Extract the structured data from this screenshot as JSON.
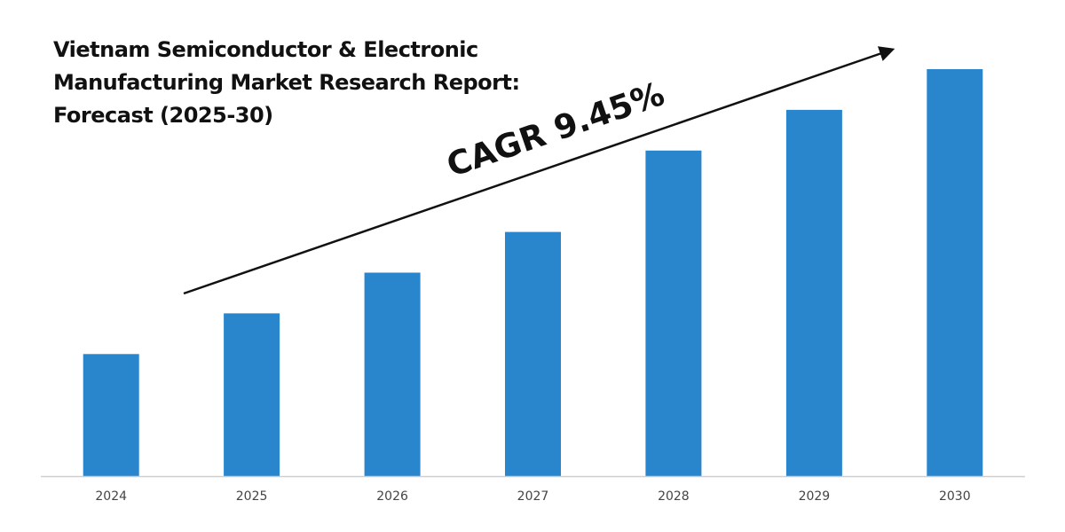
{
  "chart_data": {
    "type": "bar",
    "title_lines": [
      "Vietnam Semiconductor & Electronic",
      "Manufacturing Market Research Report:",
      "Forecast (2025-30)"
    ],
    "categories": [
      "2024",
      "2025",
      "2026",
      "2027",
      "2028",
      "2029",
      "2030"
    ],
    "values": [
      30,
      40,
      50,
      60,
      80,
      90,
      100
    ],
    "ylim": [
      0,
      100
    ],
    "bar_color": "#2a86cc",
    "axis_color": "#cfcfcf",
    "grid": false,
    "annotation": {
      "text": "CAGR 9.45%"
    }
  }
}
